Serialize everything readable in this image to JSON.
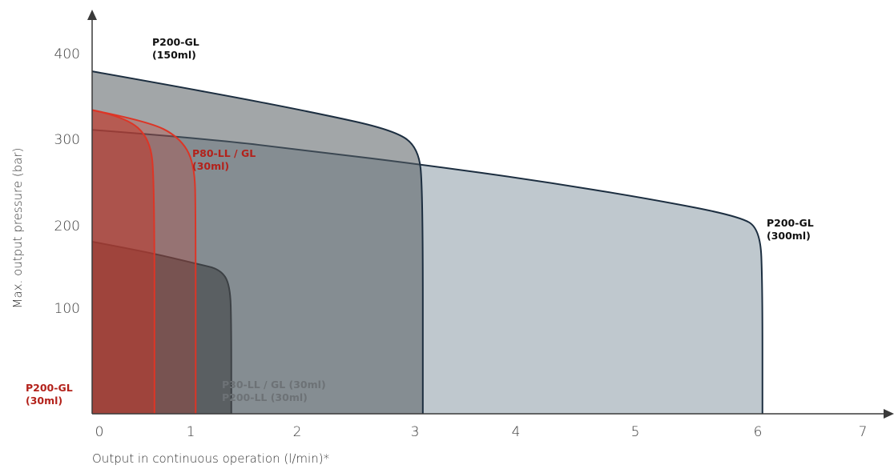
{
  "chart_data": {
    "type": "area",
    "title": "",
    "xlabel": "Output in continuous operation (l/min)*",
    "ylabel": "Max. output pressure (bar)",
    "xlim": [
      0,
      7
    ],
    "ylim": [
      0,
      400
    ],
    "x_ticks": [
      {
        "value": 0,
        "label": "0"
      },
      {
        "value": 1,
        "label": "1"
      },
      {
        "value": 2,
        "label": "2"
      },
      {
        "value": 3,
        "label": "3"
      },
      {
        "value": 4,
        "label": "4"
      },
      {
        "value": 5,
        "label": "5"
      },
      {
        "value": 6,
        "label": "6"
      },
      {
        "value": 7,
        "label": "7"
      }
    ],
    "y_ticks": [
      {
        "value": 100,
        "label": "100"
      },
      {
        "value": 200,
        "label": "200"
      },
      {
        "value": 300,
        "label": "300"
      },
      {
        "value": 400,
        "label": "400"
      }
    ],
    "grid": false,
    "series": [
      {
        "key": "p200gl_300",
        "name": "P200-GL (300ml)",
        "label_lines": [
          "P200-GL",
          "(300ml)"
        ],
        "fill": "#bcc5cb",
        "fill_opacity": 0.95,
        "stroke": "#1c2e40",
        "points": [
          [
            0,
            330
          ],
          [
            1,
            320
          ],
          [
            2,
            305
          ],
          [
            3,
            289
          ],
          [
            4,
            271
          ],
          [
            5,
            250
          ],
          [
            5.8,
            230
          ],
          [
            6,
            215
          ],
          [
            6.02,
            150
          ],
          [
            6.02,
            0
          ]
        ]
      },
      {
        "key": "p200gl_150",
        "name": "P200-GL (150ml)",
        "label_lines": [
          "P200-GL",
          "(150ml)"
        ],
        "fill": "#555d61",
        "fill_opacity": 0.55,
        "stroke": "#1c2e40",
        "points": [
          [
            0,
            398
          ],
          [
            1,
            375
          ],
          [
            2,
            350
          ],
          [
            2.7,
            330
          ],
          [
            2.93,
            310
          ],
          [
            2.97,
            260
          ],
          [
            2.97,
            0
          ]
        ]
      },
      {
        "key": "p30_ll_gl_30",
        "name": "P30-LL / GL (30ml) P200-LL (30ml)",
        "label_lines": [
          "P30-LL / GL (30ml)",
          "P200-LL (30ml)"
        ],
        "fill": "#4e5255",
        "fill_opacity": 0.78,
        "stroke": "#3c4044",
        "points": [
          [
            0,
            200
          ],
          [
            0.5,
            188
          ],
          [
            0.95,
            174
          ],
          [
            1.15,
            168
          ],
          [
            1.24,
            150
          ],
          [
            1.25,
            100
          ],
          [
            1.25,
            0
          ]
        ]
      },
      {
        "key": "p80_ll_gl_30",
        "name": "P80-LL / GL (30ml)",
        "label_lines": [
          "P80-LL / GL",
          "(30ml)"
        ],
        "fill": "#c0392b",
        "fill_opacity": 0.3,
        "stroke": "#dd3526",
        "points": [
          [
            0,
            353
          ],
          [
            0.5,
            340
          ],
          [
            0.78,
            322
          ],
          [
            0.92,
            292
          ],
          [
            0.93,
            230
          ],
          [
            0.93,
            0
          ]
        ]
      },
      {
        "key": "p200gl_30",
        "name": "P200-GL (30ml)",
        "label_lines": [
          "P200-GL",
          "(30ml)"
        ],
        "fill": "#c0392b",
        "fill_opacity": 0.55,
        "stroke": "#dd3526",
        "points": [
          [
            0,
            353
          ],
          [
            0.3,
            345
          ],
          [
            0.52,
            320
          ],
          [
            0.56,
            270
          ],
          [
            0.56,
            0
          ]
        ]
      }
    ],
    "colors": {
      "axis": "#3a3a3a",
      "label_dark": "#111111",
      "label_red": "#b3221b",
      "label_gray": "#6d7276"
    }
  }
}
